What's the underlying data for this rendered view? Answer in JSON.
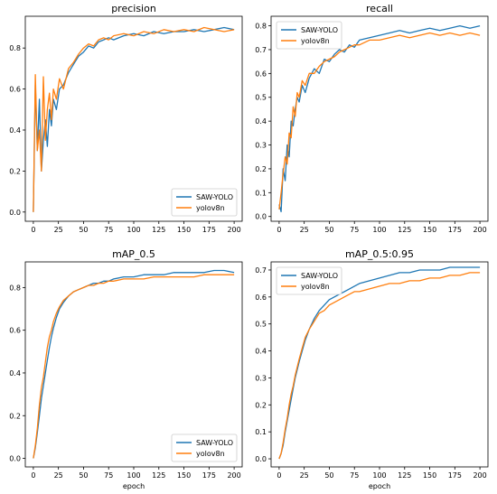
{
  "chart_data": [
    {
      "type": "line",
      "title": "precision",
      "xlabel": "",
      "ylabel": "",
      "xlim": [
        -8,
        208
      ],
      "ylim": [
        -0.045,
        0.955
      ],
      "xticks": [
        0,
        25,
        50,
        75,
        100,
        125,
        150,
        175,
        200
      ],
      "yticks": [
        0.0,
        0.2,
        0.4,
        0.6,
        0.8
      ],
      "ytick_labels": [
        "0.0",
        "0.2",
        "0.4",
        "0.6",
        "0.8"
      ],
      "legend_loc": "lower-right",
      "series": [
        {
          "name": "SAW-YOLO",
          "x": [
            0,
            2,
            4,
            6,
            8,
            10,
            12,
            14,
            16,
            18,
            20,
            23,
            26,
            30,
            35,
            40,
            45,
            50,
            55,
            60,
            65,
            70,
            75,
            80,
            90,
            100,
            110,
            120,
            130,
            140,
            150,
            160,
            170,
            180,
            190,
            200
          ],
          "y": [
            0.0,
            0.62,
            0.3,
            0.55,
            0.2,
            0.35,
            0.45,
            0.32,
            0.5,
            0.42,
            0.55,
            0.5,
            0.6,
            0.62,
            0.68,
            0.72,
            0.76,
            0.78,
            0.81,
            0.8,
            0.83,
            0.84,
            0.85,
            0.84,
            0.86,
            0.87,
            0.86,
            0.88,
            0.87,
            0.88,
            0.88,
            0.89,
            0.88,
            0.89,
            0.9,
            0.89
          ]
        },
        {
          "name": "yolov8n",
          "x": [
            0,
            2,
            4,
            6,
            8,
            10,
            12,
            14,
            16,
            18,
            20,
            23,
            26,
            30,
            35,
            40,
            45,
            50,
            55,
            60,
            65,
            70,
            75,
            80,
            90,
            100,
            110,
            120,
            130,
            140,
            150,
            160,
            170,
            180,
            190,
            200
          ],
          "y": [
            0.0,
            0.67,
            0.3,
            0.4,
            0.2,
            0.66,
            0.35,
            0.5,
            0.58,
            0.45,
            0.6,
            0.55,
            0.65,
            0.6,
            0.7,
            0.73,
            0.77,
            0.8,
            0.82,
            0.81,
            0.84,
            0.85,
            0.84,
            0.86,
            0.87,
            0.86,
            0.88,
            0.87,
            0.89,
            0.88,
            0.89,
            0.88,
            0.9,
            0.89,
            0.88,
            0.89
          ]
        }
      ]
    },
    {
      "type": "line",
      "title": "recall",
      "xlabel": "",
      "ylabel": "",
      "xlim": [
        -8,
        208
      ],
      "ylim": [
        -0.02,
        0.84
      ],
      "xticks": [
        0,
        25,
        50,
        75,
        100,
        125,
        150,
        175,
        200
      ],
      "yticks": [
        0.0,
        0.1,
        0.2,
        0.3,
        0.4,
        0.5,
        0.6,
        0.7,
        0.8
      ],
      "ytick_labels": [
        "0.0",
        "0.1",
        "0.2",
        "0.3",
        "0.4",
        "0.5",
        "0.6",
        "0.7",
        "0.8"
      ],
      "legend_loc": "upper-left",
      "series": [
        {
          "name": "SAW-YOLO",
          "x": [
            0,
            2,
            4,
            6,
            8,
            10,
            12,
            14,
            16,
            18,
            20,
            23,
            26,
            30,
            35,
            40,
            45,
            50,
            55,
            60,
            65,
            70,
            75,
            80,
            90,
            100,
            110,
            120,
            130,
            140,
            150,
            160,
            170,
            180,
            190,
            200
          ],
          "y": [
            0.05,
            0.02,
            0.2,
            0.15,
            0.3,
            0.25,
            0.4,
            0.38,
            0.45,
            0.5,
            0.48,
            0.55,
            0.52,
            0.58,
            0.62,
            0.6,
            0.66,
            0.65,
            0.68,
            0.7,
            0.69,
            0.72,
            0.71,
            0.74,
            0.75,
            0.76,
            0.77,
            0.78,
            0.77,
            0.78,
            0.79,
            0.78,
            0.79,
            0.8,
            0.79,
            0.8
          ]
        },
        {
          "name": "yolov8n",
          "x": [
            0,
            2,
            4,
            6,
            8,
            10,
            12,
            14,
            16,
            18,
            20,
            23,
            26,
            30,
            35,
            40,
            45,
            50,
            55,
            60,
            65,
            70,
            75,
            80,
            90,
            100,
            110,
            120,
            130,
            140,
            150,
            160,
            170,
            180,
            190,
            200
          ],
          "y": [
            0.03,
            0.1,
            0.18,
            0.25,
            0.22,
            0.35,
            0.33,
            0.46,
            0.42,
            0.52,
            0.5,
            0.57,
            0.55,
            0.6,
            0.6,
            0.63,
            0.65,
            0.66,
            0.67,
            0.69,
            0.7,
            0.71,
            0.72,
            0.72,
            0.74,
            0.74,
            0.75,
            0.76,
            0.75,
            0.76,
            0.77,
            0.76,
            0.77,
            0.76,
            0.77,
            0.76
          ]
        }
      ]
    },
    {
      "type": "line",
      "title": "mAP_0.5",
      "xlabel": "epoch",
      "ylabel": "",
      "xlim": [
        -8,
        208
      ],
      "ylim": [
        -0.04,
        0.92
      ],
      "xticks": [
        0,
        25,
        50,
        75,
        100,
        125,
        150,
        175,
        200
      ],
      "yticks": [
        0.0,
        0.2,
        0.4,
        0.6,
        0.8
      ],
      "ytick_labels": [
        "0.0",
        "0.2",
        "0.4",
        "0.6",
        "0.8"
      ],
      "legend_loc": "lower-right",
      "series": [
        {
          "name": "SAW-YOLO",
          "x": [
            0,
            2,
            4,
            6,
            8,
            10,
            12,
            14,
            16,
            18,
            20,
            23,
            26,
            30,
            35,
            40,
            45,
            50,
            55,
            60,
            65,
            70,
            75,
            80,
            90,
            100,
            110,
            120,
            130,
            140,
            150,
            160,
            170,
            180,
            190,
            200
          ],
          "y": [
            0.0,
            0.05,
            0.12,
            0.2,
            0.28,
            0.34,
            0.4,
            0.46,
            0.52,
            0.57,
            0.61,
            0.66,
            0.7,
            0.73,
            0.76,
            0.78,
            0.79,
            0.8,
            0.81,
            0.82,
            0.82,
            0.83,
            0.83,
            0.84,
            0.85,
            0.85,
            0.86,
            0.86,
            0.86,
            0.87,
            0.87,
            0.87,
            0.87,
            0.88,
            0.88,
            0.87
          ]
        },
        {
          "name": "yolov8n",
          "x": [
            0,
            2,
            4,
            6,
            8,
            10,
            12,
            14,
            16,
            18,
            20,
            23,
            26,
            30,
            35,
            40,
            45,
            50,
            55,
            60,
            65,
            70,
            75,
            80,
            90,
            100,
            110,
            120,
            130,
            140,
            150,
            160,
            170,
            180,
            190,
            200
          ],
          "y": [
            0.0,
            0.06,
            0.14,
            0.25,
            0.33,
            0.38,
            0.45,
            0.52,
            0.57,
            0.6,
            0.64,
            0.68,
            0.71,
            0.74,
            0.76,
            0.78,
            0.79,
            0.8,
            0.81,
            0.81,
            0.82,
            0.82,
            0.83,
            0.83,
            0.84,
            0.84,
            0.84,
            0.85,
            0.85,
            0.85,
            0.85,
            0.85,
            0.86,
            0.86,
            0.86,
            0.86
          ]
        }
      ]
    },
    {
      "type": "line",
      "title": "mAP_0.5:0.95",
      "xlabel": "epoch",
      "ylabel": "",
      "xlim": [
        -8,
        208
      ],
      "ylim": [
        -0.03,
        0.73
      ],
      "xticks": [
        0,
        25,
        50,
        75,
        100,
        125,
        150,
        175,
        200
      ],
      "yticks": [
        0.0,
        0.1,
        0.2,
        0.3,
        0.4,
        0.5,
        0.6,
        0.7
      ],
      "ytick_labels": [
        "0.0",
        "0.1",
        "0.2",
        "0.3",
        "0.4",
        "0.5",
        "0.6",
        "0.7"
      ],
      "legend_loc": "upper-left",
      "series": [
        {
          "name": "SAW-YOLO",
          "x": [
            0,
            2,
            4,
            6,
            8,
            10,
            12,
            14,
            16,
            18,
            20,
            23,
            26,
            30,
            35,
            40,
            45,
            50,
            55,
            60,
            65,
            70,
            75,
            80,
            90,
            100,
            110,
            120,
            130,
            140,
            150,
            160,
            170,
            180,
            190,
            200
          ],
          "y": [
            0.0,
            0.02,
            0.05,
            0.1,
            0.14,
            0.18,
            0.22,
            0.26,
            0.3,
            0.33,
            0.36,
            0.4,
            0.44,
            0.48,
            0.52,
            0.55,
            0.57,
            0.59,
            0.6,
            0.61,
            0.62,
            0.63,
            0.64,
            0.65,
            0.66,
            0.67,
            0.68,
            0.69,
            0.69,
            0.7,
            0.7,
            0.7,
            0.71,
            0.71,
            0.71,
            0.71
          ]
        },
        {
          "name": "yolov8n",
          "x": [
            0,
            2,
            4,
            6,
            8,
            10,
            12,
            14,
            16,
            18,
            20,
            23,
            26,
            30,
            35,
            40,
            45,
            50,
            55,
            60,
            65,
            70,
            75,
            80,
            90,
            100,
            110,
            120,
            130,
            140,
            150,
            160,
            170,
            180,
            190,
            200
          ],
          "y": [
            0.0,
            0.02,
            0.06,
            0.11,
            0.15,
            0.2,
            0.24,
            0.27,
            0.31,
            0.34,
            0.37,
            0.41,
            0.45,
            0.48,
            0.51,
            0.54,
            0.55,
            0.57,
            0.58,
            0.59,
            0.6,
            0.61,
            0.62,
            0.62,
            0.63,
            0.64,
            0.65,
            0.65,
            0.66,
            0.66,
            0.67,
            0.67,
            0.68,
            0.68,
            0.69,
            0.69
          ]
        }
      ]
    }
  ],
  "colors": {
    "saw_yolo": "#1f77b4",
    "yolov8n": "#ff7f0e"
  }
}
